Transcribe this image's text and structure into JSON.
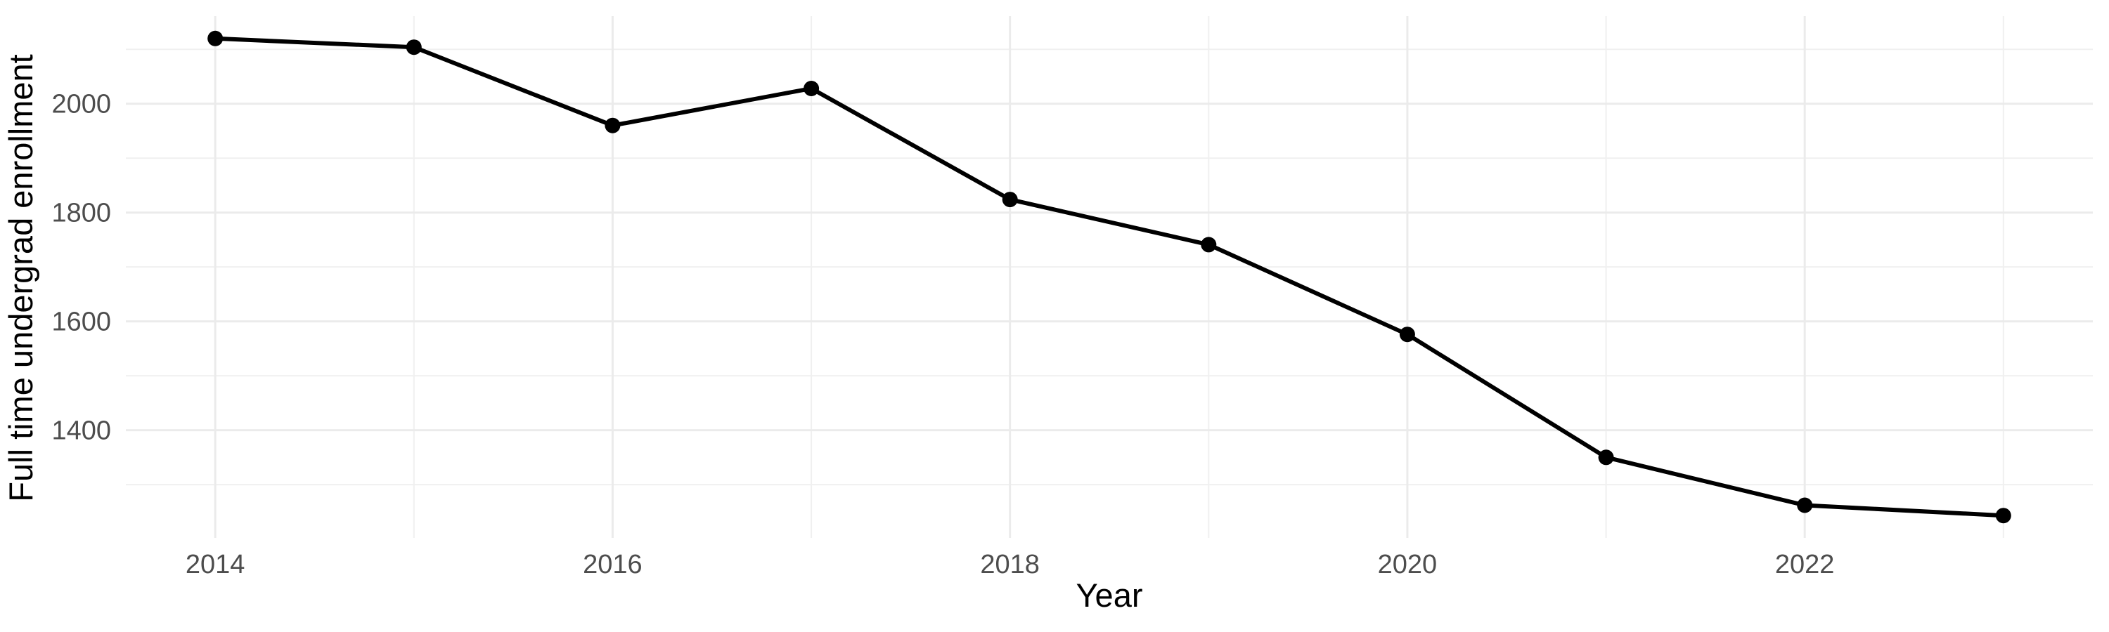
{
  "chart_data": {
    "type": "line",
    "title": "",
    "xlabel": "Year",
    "ylabel": "Full time undergrad enrollment",
    "x": [
      2014,
      2015,
      2016,
      2017,
      2018,
      2019,
      2020,
      2021,
      2022,
      2023
    ],
    "series": [
      {
        "name": "Full time undergrad enrollment",
        "values": [
          2120,
          2104,
          1960,
          2028,
          1824,
          1741,
          1576,
          1350,
          1262,
          1243
        ]
      }
    ],
    "x_tick_labels": [
      "2014",
      "2016",
      "2018",
      "2020",
      "2022"
    ],
    "x_ticks": [
      2014,
      2016,
      2018,
      2020,
      2022
    ],
    "x_minor_ticks": [
      2015,
      2017,
      2019,
      2021,
      2023
    ],
    "y_tick_labels": [
      "1400",
      "1600",
      "1800",
      "2000"
    ],
    "y_ticks": [
      1400,
      1600,
      1800,
      2000
    ],
    "y_minor_ticks": [
      1300,
      1500,
      1700,
      1900,
      2100
    ],
    "xlim": [
      2013.55,
      2023.45
    ],
    "ylim": [
      1202,
      2161
    ],
    "grid": true,
    "legend": "none",
    "colors": {
      "line": "#000000",
      "point": "#000000",
      "grid_major": "#EBEBEB",
      "grid_minor": "#F0F0F0",
      "tick_label": "#4D4D4D",
      "axis_title": "#000000",
      "background": "#FFFFFF"
    }
  }
}
